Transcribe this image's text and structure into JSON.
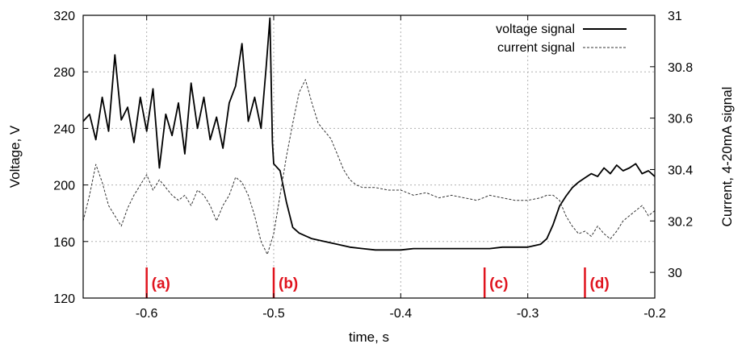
{
  "chart_data": {
    "type": "line",
    "title": "",
    "xlabel": "time, s",
    "ylabel": "Voltage, V",
    "y2label": "Current, 4-20mA signal",
    "xlim": [
      -0.65,
      -0.2
    ],
    "ylim": [
      120,
      320
    ],
    "y2lim": [
      29.9,
      31.0
    ],
    "grid": true,
    "legend_position": "top-right",
    "x_ticks": [
      -0.6,
      -0.5,
      -0.4,
      -0.3,
      -0.2
    ],
    "x_tick_labels": [
      "-0.6",
      "-0.5",
      "-0.4",
      "-0.3",
      "-0.2"
    ],
    "y_ticks": [
      120,
      160,
      200,
      240,
      280,
      320
    ],
    "y_tick_labels": [
      "120",
      "160",
      "200",
      "240",
      "280",
      "320"
    ],
    "y2_ticks": [
      30.0,
      30.2,
      30.4,
      30.6,
      30.8,
      31.0
    ],
    "y2_tick_labels": [
      "30",
      "30.2",
      "30.4",
      "30.6",
      "30.8",
      "31"
    ],
    "series": [
      {
        "name": "voltage signal",
        "axis": "left",
        "color": "#000000",
        "style": "solid",
        "x": [
          -0.65,
          -0.645,
          -0.64,
          -0.635,
          -0.63,
          -0.625,
          -0.62,
          -0.615,
          -0.61,
          -0.605,
          -0.6,
          -0.595,
          -0.59,
          -0.585,
          -0.58,
          -0.575,
          -0.57,
          -0.565,
          -0.56,
          -0.555,
          -0.55,
          -0.545,
          -0.54,
          -0.535,
          -0.53,
          -0.525,
          -0.52,
          -0.515,
          -0.51,
          -0.506,
          -0.503,
          -0.501,
          -0.5,
          -0.495,
          -0.49,
          -0.485,
          -0.48,
          -0.475,
          -0.47,
          -0.46,
          -0.45,
          -0.44,
          -0.43,
          -0.42,
          -0.41,
          -0.4,
          -0.39,
          -0.38,
          -0.37,
          -0.36,
          -0.35,
          -0.34,
          -0.33,
          -0.32,
          -0.31,
          -0.3,
          -0.29,
          -0.285,
          -0.28,
          -0.275,
          -0.27,
          -0.265,
          -0.26,
          -0.255,
          -0.25,
          -0.245,
          -0.24,
          -0.235,
          -0.23,
          -0.225,
          -0.22,
          -0.215,
          -0.21,
          -0.205,
          -0.2
        ],
        "values": [
          245,
          250,
          232,
          262,
          238,
          292,
          246,
          255,
          230,
          262,
          238,
          268,
          212,
          250,
          235,
          258,
          222,
          272,
          240,
          262,
          232,
          248,
          226,
          258,
          270,
          300,
          245,
          262,
          240,
          283,
          318,
          230,
          215,
          210,
          188,
          170,
          166,
          164,
          162,
          160,
          158,
          156,
          155,
          154,
          154,
          154,
          155,
          155,
          155,
          155,
          155,
          155,
          155,
          156,
          156,
          156,
          158,
          162,
          172,
          185,
          192,
          198,
          202,
          205,
          208,
          206,
          212,
          208,
          214,
          210,
          212,
          215,
          208,
          210,
          206
        ]
      },
      {
        "name": "current signal",
        "axis": "right",
        "color": "#333333",
        "style": "dashed",
        "x": [
          -0.65,
          -0.645,
          -0.64,
          -0.635,
          -0.63,
          -0.625,
          -0.62,
          -0.615,
          -0.61,
          -0.605,
          -0.6,
          -0.595,
          -0.59,
          -0.585,
          -0.58,
          -0.575,
          -0.57,
          -0.565,
          -0.56,
          -0.555,
          -0.55,
          -0.545,
          -0.54,
          -0.535,
          -0.53,
          -0.525,
          -0.52,
          -0.515,
          -0.51,
          -0.505,
          -0.5,
          -0.495,
          -0.49,
          -0.485,
          -0.48,
          -0.475,
          -0.47,
          -0.465,
          -0.46,
          -0.455,
          -0.45,
          -0.445,
          -0.44,
          -0.435,
          -0.43,
          -0.42,
          -0.41,
          -0.4,
          -0.39,
          -0.38,
          -0.37,
          -0.36,
          -0.35,
          -0.34,
          -0.33,
          -0.32,
          -0.31,
          -0.3,
          -0.29,
          -0.285,
          -0.28,
          -0.275,
          -0.27,
          -0.265,
          -0.26,
          -0.255,
          -0.25,
          -0.245,
          -0.24,
          -0.235,
          -0.23,
          -0.225,
          -0.22,
          -0.215,
          -0.21,
          -0.205,
          -0.2
        ],
        "values": [
          30.2,
          30.3,
          30.42,
          30.35,
          30.26,
          30.22,
          30.18,
          30.25,
          30.3,
          30.34,
          30.38,
          30.32,
          30.36,
          30.33,
          30.3,
          30.28,
          30.3,
          30.26,
          30.32,
          30.3,
          30.26,
          30.2,
          30.26,
          30.3,
          30.37,
          30.35,
          30.3,
          30.22,
          30.12,
          30.07,
          30.15,
          30.3,
          30.45,
          30.58,
          30.7,
          30.75,
          30.66,
          30.58,
          30.55,
          30.52,
          30.46,
          30.4,
          30.36,
          30.34,
          30.33,
          30.33,
          30.32,
          30.32,
          30.3,
          30.31,
          30.29,
          30.3,
          30.29,
          30.28,
          30.3,
          30.29,
          30.28,
          30.28,
          30.29,
          30.3,
          30.3,
          30.28,
          30.22,
          30.18,
          30.15,
          30.16,
          30.14,
          30.18,
          30.15,
          30.13,
          30.16,
          30.2,
          30.22,
          30.24,
          30.26,
          30.22,
          30.24
        ]
      }
    ],
    "markers": [
      {
        "x": -0.6,
        "label": "(a)",
        "color": "#e0141e"
      },
      {
        "x": -0.5,
        "label": "(b)",
        "color": "#e0141e"
      },
      {
        "x": -0.334,
        "label": "(c)",
        "color": "#e0141e"
      },
      {
        "x": -0.255,
        "label": "(d)",
        "color": "#e0141e"
      }
    ]
  }
}
